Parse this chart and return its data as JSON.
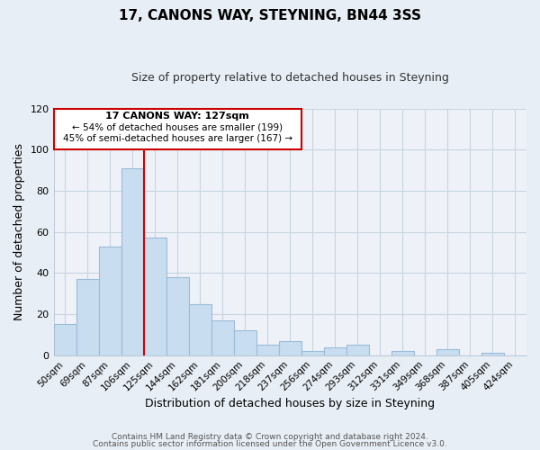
{
  "title": "17, CANONS WAY, STEYNING, BN44 3SS",
  "subtitle": "Size of property relative to detached houses in Steyning",
  "xlabel": "Distribution of detached houses by size in Steyning",
  "ylabel": "Number of detached properties",
  "bar_color": "#c8ddf0",
  "bar_edge_color": "#9bbbd8",
  "categories": [
    "50sqm",
    "69sqm",
    "87sqm",
    "106sqm",
    "125sqm",
    "144sqm",
    "162sqm",
    "181sqm",
    "200sqm",
    "218sqm",
    "237sqm",
    "256sqm",
    "274sqm",
    "293sqm",
    "312sqm",
    "331sqm",
    "349sqm",
    "368sqm",
    "387sqm",
    "405sqm",
    "424sqm"
  ],
  "values": [
    15,
    37,
    53,
    91,
    57,
    38,
    25,
    17,
    12,
    5,
    7,
    2,
    4,
    5,
    0,
    2,
    0,
    3,
    0,
    1,
    0
  ],
  "ylim": [
    0,
    120
  ],
  "yticks": [
    0,
    20,
    40,
    60,
    80,
    100,
    120
  ],
  "vline_index": 4,
  "marker_label": "17 CANONS WAY: 127sqm",
  "annotation_line1": "← 54% of detached houses are smaller (199)",
  "annotation_line2": "45% of semi-detached houses are larger (167) →",
  "box_color": "#ffffff",
  "box_edge_color": "#cc0000",
  "vline_color": "#cc0000",
  "footer1": "Contains HM Land Registry data © Crown copyright and database right 2024.",
  "footer2": "Contains public sector information licensed under the Open Government Licence v3.0.",
  "bg_color": "#e8eef5",
  "plot_bg_color": "#eef2f8",
  "grid_color": "#c8d4e0"
}
